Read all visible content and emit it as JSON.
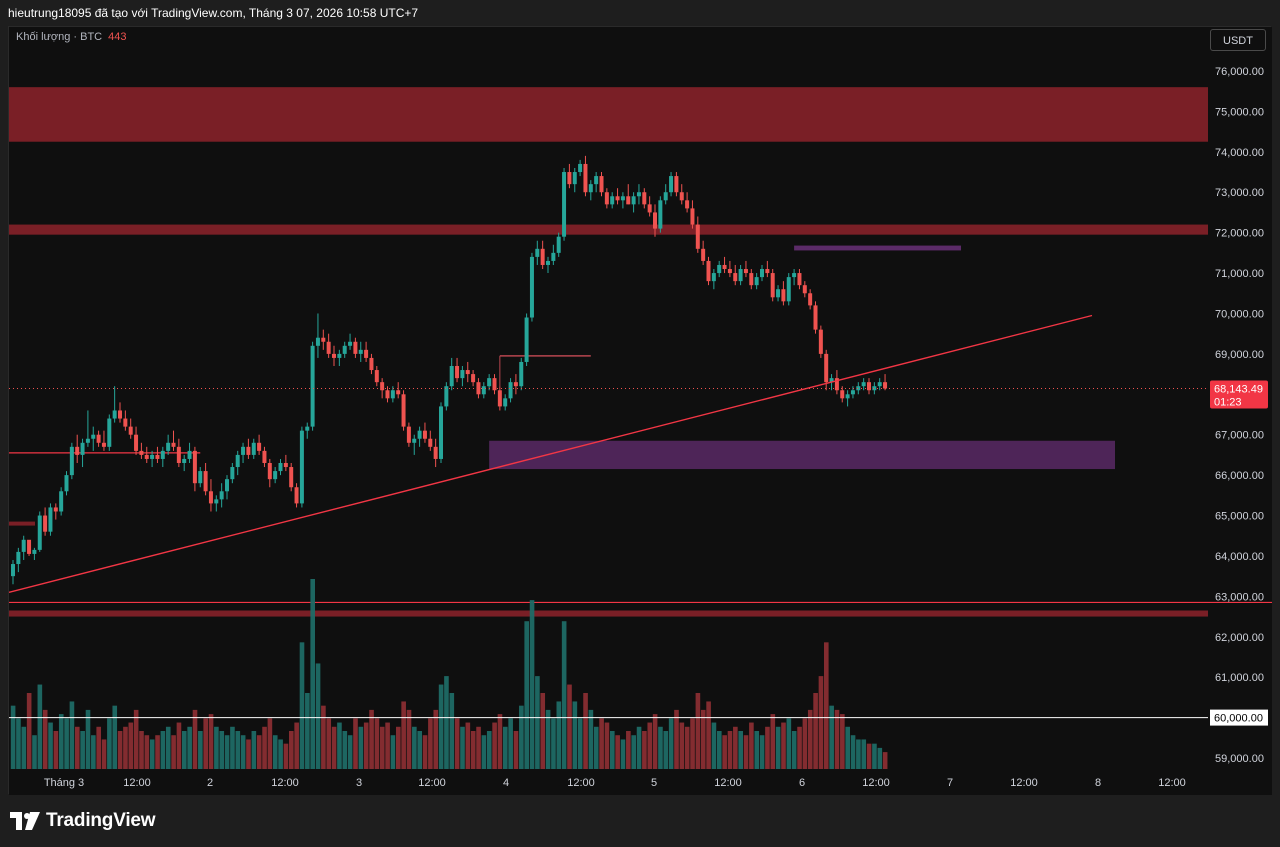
{
  "header": {
    "text": "hieutrung18095 đã tạo với TradingView.com, Tháng 3 07, 2026 10:58 UTC+7"
  },
  "legend": {
    "label": "Khối lượng · BTC",
    "value": "443"
  },
  "currency": "USDT",
  "footer": {
    "brand": "TradingView"
  },
  "colors": {
    "up": "#26a69a",
    "down": "#ef5350",
    "zone_red": "#7a1f26",
    "zone_purple": "#4e2558",
    "trendline": "#f23645"
  },
  "chart_data": {
    "type": "candlestick",
    "symbol": "BTC/USDT",
    "ylim": [
      58600,
      77000
    ],
    "y_ticks": [
      "76,000.00",
      "75,000.00",
      "74,000.00",
      "73,000.00",
      "72,000.00",
      "71,000.00",
      "70,000.00",
      "69,000.00",
      "68,000.00",
      "67,000.00",
      "66,000.00",
      "65,000.00",
      "64,000.00",
      "63,000.00",
      "62,000.00",
      "61,000.00",
      "60,000.00",
      "59,000.00"
    ],
    "x_ticks": [
      "Tháng 3",
      "12:00",
      "2",
      "12:00",
      "3",
      "12:00",
      "4",
      "12:00",
      "5",
      "12:00",
      "6",
      "12:00",
      "7",
      "12:00",
      "8",
      "12:00"
    ],
    "current_price": {
      "label": "68,143.49",
      "countdown": "01:23",
      "value": 68143.49
    },
    "line_60000": {
      "label": "60,000.00",
      "value": 60000
    },
    "bar_interval": "1h",
    "candles": [
      [
        63500,
        63900,
        63300,
        63800,
        15
      ],
      [
        63800,
        64200,
        63600,
        64100,
        12
      ],
      [
        64100,
        64500,
        63900,
        64400,
        10
      ],
      [
        64400,
        64300,
        64000,
        64050,
        18
      ],
      [
        64050,
        64200,
        63900,
        64150,
        8
      ],
      [
        64150,
        65100,
        64100,
        65000,
        20
      ],
      [
        65000,
        65200,
        64500,
        64600,
        14
      ],
      [
        64600,
        65300,
        64500,
        65200,
        11
      ],
      [
        65200,
        65300,
        64900,
        65100,
        9
      ],
      [
        65100,
        65700,
        65000,
        65600,
        13
      ],
      [
        65600,
        66100,
        65500,
        66000,
        12
      ],
      [
        66000,
        66800,
        65900,
        66700,
        16
      ],
      [
        66700,
        67000,
        66300,
        66500,
        10
      ],
      [
        66500,
        66900,
        66200,
        66800,
        9
      ],
      [
        66800,
        67600,
        66700,
        66900,
        14
      ],
      [
        66900,
        67200,
        66600,
        67000,
        8
      ],
      [
        67000,
        67100,
        66700,
        66800,
        10
      ],
      [
        66800,
        67100,
        66600,
        66700,
        7
      ],
      [
        66700,
        67500,
        66600,
        67400,
        12
      ],
      [
        67400,
        68200,
        67300,
        67600,
        15
      ],
      [
        67600,
        67800,
        67300,
        67400,
        9
      ],
      [
        67400,
        67600,
        67100,
        67200,
        10
      ],
      [
        67200,
        67400,
        66900,
        67000,
        11
      ],
      [
        67000,
        67200,
        66500,
        66600,
        14
      ],
      [
        66600,
        66800,
        66400,
        66500,
        9
      ],
      [
        66500,
        66700,
        66300,
        66400,
        8
      ],
      [
        66400,
        66600,
        66200,
        66500,
        7
      ],
      [
        66500,
        66700,
        66300,
        66400,
        8
      ],
      [
        66400,
        66700,
        66200,
        66600,
        9
      ],
      [
        66600,
        67000,
        66500,
        66800,
        10
      ],
      [
        66800,
        67100,
        66600,
        66700,
        8
      ],
      [
        66700,
        66900,
        66200,
        66300,
        11
      ],
      [
        66300,
        66500,
        66100,
        66400,
        9
      ],
      [
        66400,
        66800,
        66300,
        66600,
        10
      ],
      [
        66600,
        66700,
        65600,
        65800,
        14
      ],
      [
        65800,
        66200,
        65700,
        66100,
        9
      ],
      [
        66100,
        66300,
        65500,
        65600,
        12
      ],
      [
        65600,
        65900,
        65100,
        65300,
        13
      ],
      [
        65300,
        65500,
        65100,
        65400,
        10
      ],
      [
        65400,
        65800,
        65200,
        65600,
        9
      ],
      [
        65600,
        66000,
        65400,
        65900,
        8
      ],
      [
        65900,
        66300,
        65800,
        66200,
        10
      ],
      [
        66200,
        66600,
        66000,
        66500,
        9
      ],
      [
        66500,
        66800,
        66300,
        66700,
        8
      ],
      [
        66700,
        66900,
        66400,
        66500,
        7
      ],
      [
        66500,
        66900,
        66400,
        66800,
        9
      ],
      [
        66800,
        67000,
        66500,
        66600,
        8
      ],
      [
        66600,
        66700,
        66200,
        66300,
        10
      ],
      [
        66300,
        66400,
        65700,
        65900,
        12
      ],
      [
        65900,
        66200,
        65800,
        66100,
        8
      ],
      [
        66100,
        66400,
        66000,
        66300,
        7
      ],
      [
        66300,
        66500,
        66100,
        66200,
        6
      ],
      [
        66200,
        66300,
        65600,
        65700,
        9
      ],
      [
        65700,
        65800,
        65200,
        65300,
        11
      ],
      [
        65300,
        67200,
        65200,
        67100,
        30
      ],
      [
        67100,
        67300,
        66900,
        67200,
        18
      ],
      [
        67200,
        69300,
        67100,
        69200,
        45
      ],
      [
        69200,
        70000,
        68900,
        69400,
        25
      ],
      [
        69400,
        69600,
        69100,
        69300,
        15
      ],
      [
        69300,
        69500,
        68900,
        69000,
        12
      ],
      [
        69000,
        69200,
        68700,
        68900,
        10
      ],
      [
        68900,
        69100,
        68700,
        69000,
        11
      ],
      [
        69000,
        69300,
        68900,
        69200,
        9
      ],
      [
        69200,
        69500,
        69100,
        69300,
        8
      ],
      [
        69300,
        69400,
        68900,
        69000,
        12
      ],
      [
        69000,
        69300,
        68800,
        69100,
        10
      ],
      [
        69100,
        69300,
        68800,
        68900,
        11
      ],
      [
        68900,
        69000,
        68500,
        68600,
        14
      ],
      [
        68600,
        68700,
        68200,
        68300,
        12
      ],
      [
        68300,
        68400,
        67900,
        68100,
        10
      ],
      [
        68100,
        68200,
        67800,
        67900,
        11
      ],
      [
        67900,
        68200,
        67800,
        68100,
        8
      ],
      [
        68100,
        68300,
        67900,
        68000,
        10
      ],
      [
        68000,
        68100,
        67100,
        67200,
        16
      ],
      [
        67200,
        67300,
        66700,
        66800,
        14
      ],
      [
        66800,
        67000,
        66500,
        66900,
        10
      ],
      [
        66900,
        67200,
        66700,
        67100,
        9
      ],
      [
        67100,
        67300,
        66800,
        66900,
        8
      ],
      [
        66900,
        67100,
        66600,
        66700,
        12
      ],
      [
        66700,
        66900,
        66200,
        66400,
        14
      ],
      [
        66400,
        67800,
        66300,
        67700,
        20
      ],
      [
        67700,
        68300,
        67600,
        68200,
        22
      ],
      [
        68200,
        68900,
        68100,
        68700,
        18
      ],
      [
        68700,
        68900,
        68300,
        68400,
        12
      ],
      [
        68400,
        68700,
        68200,
        68600,
        10
      ],
      [
        68600,
        68800,
        68300,
        68500,
        11
      ],
      [
        68500,
        68600,
        68200,
        68300,
        9
      ],
      [
        68300,
        68400,
        67900,
        68000,
        10
      ],
      [
        68000,
        68300,
        67900,
        68200,
        8
      ],
      [
        68200,
        68500,
        68100,
        68400,
        9
      ],
      [
        68400,
        68500,
        68000,
        68100,
        11
      ],
      [
        68100,
        68200,
        67600,
        67700,
        13
      ],
      [
        67700,
        68000,
        67600,
        67900,
        10
      ],
      [
        67900,
        68400,
        67800,
        68300,
        12
      ],
      [
        68300,
        68500,
        68000,
        68200,
        9
      ],
      [
        68200,
        68900,
        68100,
        68800,
        15
      ],
      [
        68800,
        70000,
        68700,
        69900,
        35
      ],
      [
        69900,
        71500,
        69800,
        71400,
        40
      ],
      [
        71400,
        71800,
        71200,
        71600,
        22
      ],
      [
        71600,
        71800,
        71100,
        71200,
        18
      ],
      [
        71200,
        71400,
        71000,
        71300,
        14
      ],
      [
        71300,
        71700,
        71200,
        71500,
        12
      ],
      [
        71500,
        72000,
        71400,
        71900,
        16
      ],
      [
        71900,
        73600,
        71800,
        73500,
        35
      ],
      [
        73500,
        73700,
        73100,
        73200,
        20
      ],
      [
        73200,
        73600,
        73000,
        73500,
        16
      ],
      [
        73500,
        73800,
        73400,
        73700,
        12
      ],
      [
        73700,
        73900,
        72900,
        73000,
        18
      ],
      [
        73000,
        73300,
        72800,
        73200,
        14
      ],
      [
        73200,
        73500,
        73000,
        73400,
        10
      ],
      [
        73400,
        73500,
        72900,
        73000,
        12
      ],
      [
        73000,
        73100,
        72600,
        72700,
        11
      ],
      [
        72700,
        73000,
        72600,
        72900,
        9
      ],
      [
        72900,
        73100,
        72700,
        72800,
        8
      ],
      [
        72800,
        73000,
        72600,
        72900,
        7
      ],
      [
        72900,
        73200,
        72700,
        72700,
        9
      ],
      [
        72700,
        73000,
        72500,
        72900,
        8
      ],
      [
        72900,
        73200,
        72700,
        73000,
        10
      ],
      [
        73000,
        73100,
        72600,
        72700,
        9
      ],
      [
        72700,
        72900,
        72400,
        72500,
        11
      ],
      [
        72500,
        72700,
        71900,
        72100,
        13
      ],
      [
        72100,
        72900,
        72000,
        72800,
        10
      ],
      [
        72800,
        73200,
        72700,
        73000,
        9
      ],
      [
        73000,
        73500,
        72900,
        73400,
        12
      ],
      [
        73400,
        73500,
        72900,
        73000,
        14
      ],
      [
        73000,
        73200,
        72700,
        72800,
        11
      ],
      [
        72800,
        73000,
        72500,
        72600,
        10
      ],
      [
        72600,
        72800,
        72100,
        72200,
        12
      ],
      [
        72200,
        72400,
        71500,
        71600,
        18
      ],
      [
        71600,
        71800,
        71200,
        71300,
        14
      ],
      [
        71300,
        71400,
        70700,
        70800,
        16
      ],
      [
        70800,
        71100,
        70600,
        71000,
        11
      ],
      [
        71000,
        71300,
        70900,
        71200,
        9
      ],
      [
        71200,
        71400,
        71000,
        71100,
        8
      ],
      [
        71100,
        71300,
        70900,
        71000,
        9
      ],
      [
        71000,
        71200,
        70700,
        70800,
        10
      ],
      [
        70800,
        71200,
        70700,
        71100,
        9
      ],
      [
        71100,
        71300,
        70900,
        71000,
        8
      ],
      [
        71000,
        71100,
        70600,
        70700,
        11
      ],
      [
        70700,
        71000,
        70600,
        70900,
        9
      ],
      [
        70900,
        71200,
        70800,
        71100,
        8
      ],
      [
        71100,
        71300,
        70900,
        71000,
        10
      ],
      [
        71000,
        71100,
        70300,
        70400,
        13
      ],
      [
        70400,
        70700,
        70300,
        70600,
        10
      ],
      [
        70600,
        70800,
        70200,
        70300,
        11
      ],
      [
        70300,
        71000,
        70200,
        70900,
        12
      ],
      [
        70900,
        71100,
        70700,
        71000,
        9
      ],
      [
        71000,
        71100,
        70600,
        70700,
        10
      ],
      [
        70700,
        70800,
        70400,
        70500,
        12
      ],
      [
        70500,
        70600,
        70100,
        70200,
        14
      ],
      [
        70200,
        70300,
        69500,
        69600,
        18
      ],
      [
        69600,
        69700,
        68900,
        69000,
        22
      ],
      [
        69000,
        69100,
        68100,
        68300,
        30
      ],
      [
        68300,
        68500,
        68100,
        68400,
        15
      ],
      [
        68400,
        68600,
        68000,
        68100,
        14
      ],
      [
        68100,
        68200,
        67800,
        67900,
        13
      ],
      [
        67900,
        68100,
        67700,
        68000,
        10
      ],
      [
        68000,
        68200,
        67900,
        68100,
        8
      ],
      [
        68100,
        68300,
        68000,
        68200,
        7
      ],
      [
        68200,
        68400,
        68100,
        68300,
        7
      ],
      [
        68300,
        68400,
        68000,
        68100,
        6
      ],
      [
        68100,
        68300,
        68000,
        68200,
        6
      ],
      [
        68200,
        68400,
        68100,
        68300,
        5
      ],
      [
        68300,
        68500,
        68100,
        68143,
        4
      ]
    ],
    "zones": [
      {
        "from": 74250,
        "to": 75600,
        "color": "#7a1f26"
      },
      {
        "from": 71950,
        "to": 72200,
        "color": "#7a1f26"
      },
      {
        "from": 62500,
        "to": 62650,
        "color": "#7a1f26"
      }
    ],
    "levels": [
      {
        "value": 66550,
        "color": "#f23645"
      },
      {
        "value": 62850,
        "color": "#f23645"
      }
    ],
    "trendline": {
      "start": [
        63100,
        0
      ],
      "end": [
        69950,
        210
      ],
      "color": "#f23645"
    }
  }
}
